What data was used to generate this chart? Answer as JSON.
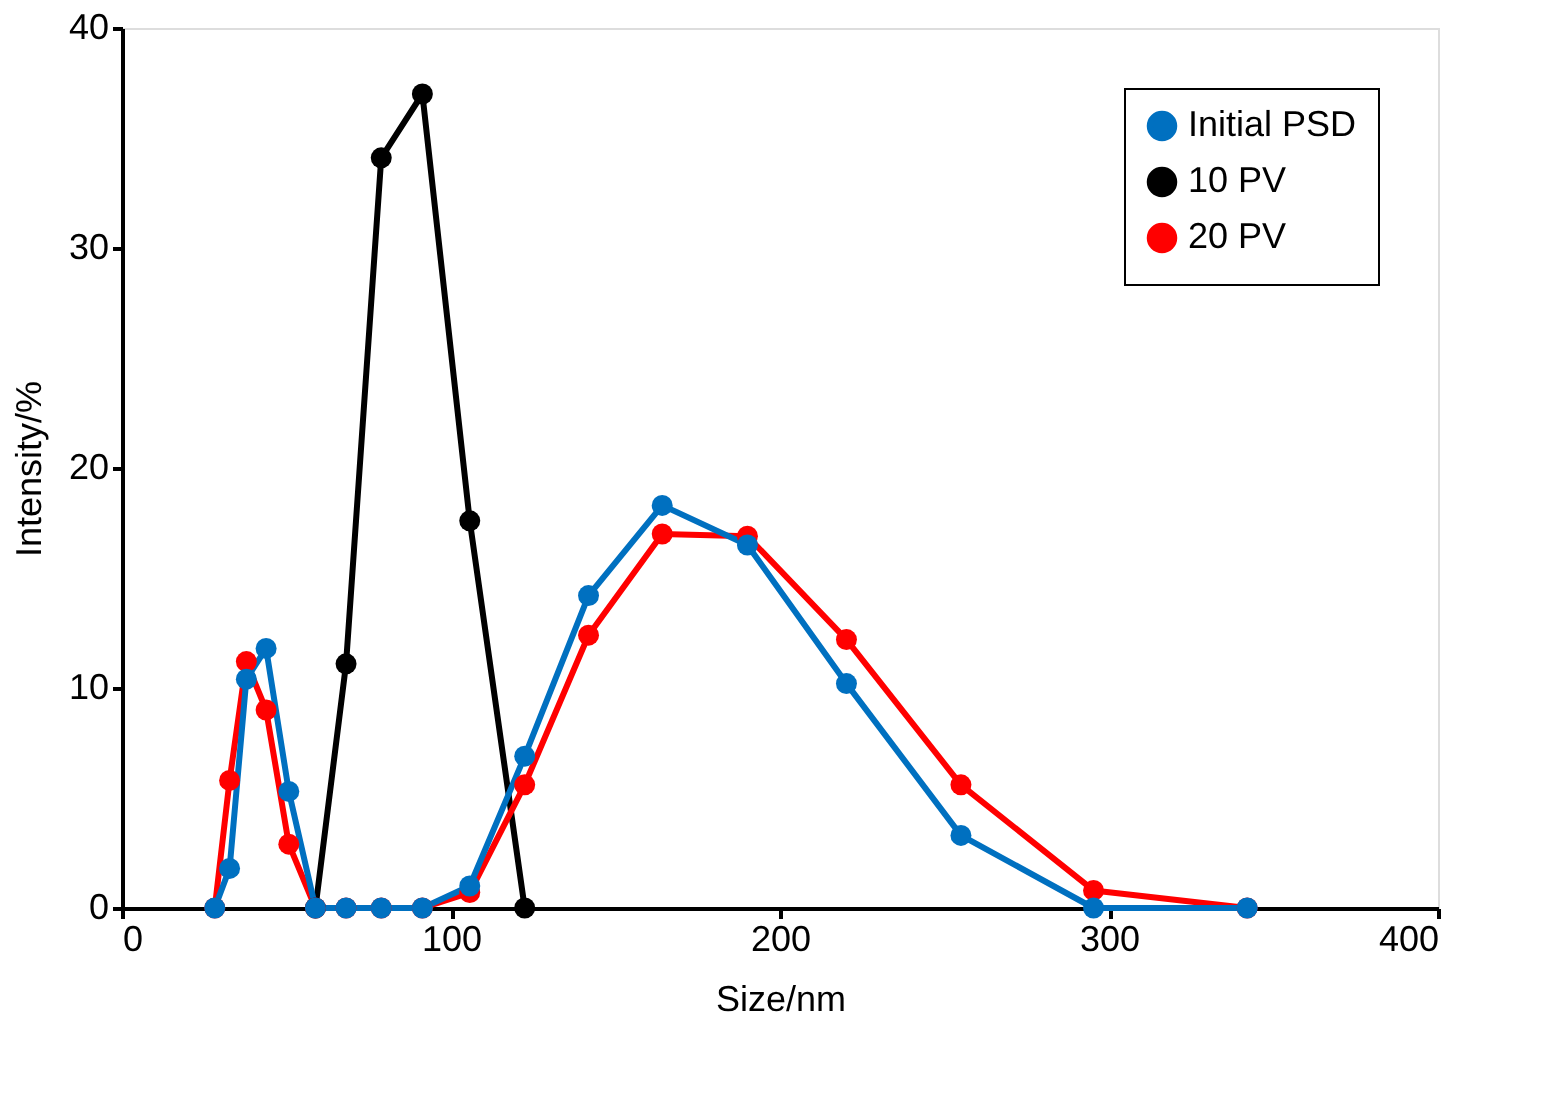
{
  "chart_data": {
    "type": "line",
    "xlabel": "Size/nm",
    "ylabel": "Intensity/%",
    "xlim": [
      0,
      400
    ],
    "xticks": [
      0,
      100,
      200,
      300,
      400
    ],
    "ylim": [
      0,
      40
    ],
    "yticks": [
      0,
      10,
      20,
      30,
      40
    ],
    "grid": false,
    "legend": "top right",
    "marker": "circle",
    "line_style": "solid",
    "series": [
      {
        "name": "Initial PSD",
        "color": "#0070c0",
        "x": [
          28.2,
          32.7,
          37.8,
          43.8,
          50.7,
          58.8,
          68.1,
          78.8,
          91.3,
          105.7,
          122.4,
          141.8,
          164.2,
          190.1,
          220.2,
          255,
          295.3,
          342
        ],
        "values": [
          0,
          1.8,
          10.4,
          11.8,
          5.3,
          0,
          0,
          0,
          0,
          1.0,
          6.9,
          14.2,
          18.3,
          16.5,
          10.2,
          3.3,
          0,
          0
        ]
      },
      {
        "name": "10 PV",
        "color": "#000000",
        "x": [
          58.8,
          68.1,
          78.8,
          91.3,
          105.7,
          122.4
        ],
        "values": [
          0,
          11.1,
          34.1,
          37.0,
          17.6,
          0
        ]
      },
      {
        "name": "20 PV",
        "color": "#ff0000",
        "x": [
          28.2,
          32.7,
          37.8,
          43.8,
          50.7,
          58.8,
          68.1,
          78.8,
          91.3,
          105.7,
          122.4,
          141.8,
          164.2,
          190.1,
          220.2,
          255,
          295.3,
          342
        ],
        "values": [
          0,
          5.8,
          11.2,
          9.0,
          2.9,
          0,
          0,
          0,
          0,
          0.7,
          5.6,
          12.4,
          17.0,
          16.9,
          12.2,
          5.6,
          0.8,
          0
        ]
      }
    ]
  }
}
